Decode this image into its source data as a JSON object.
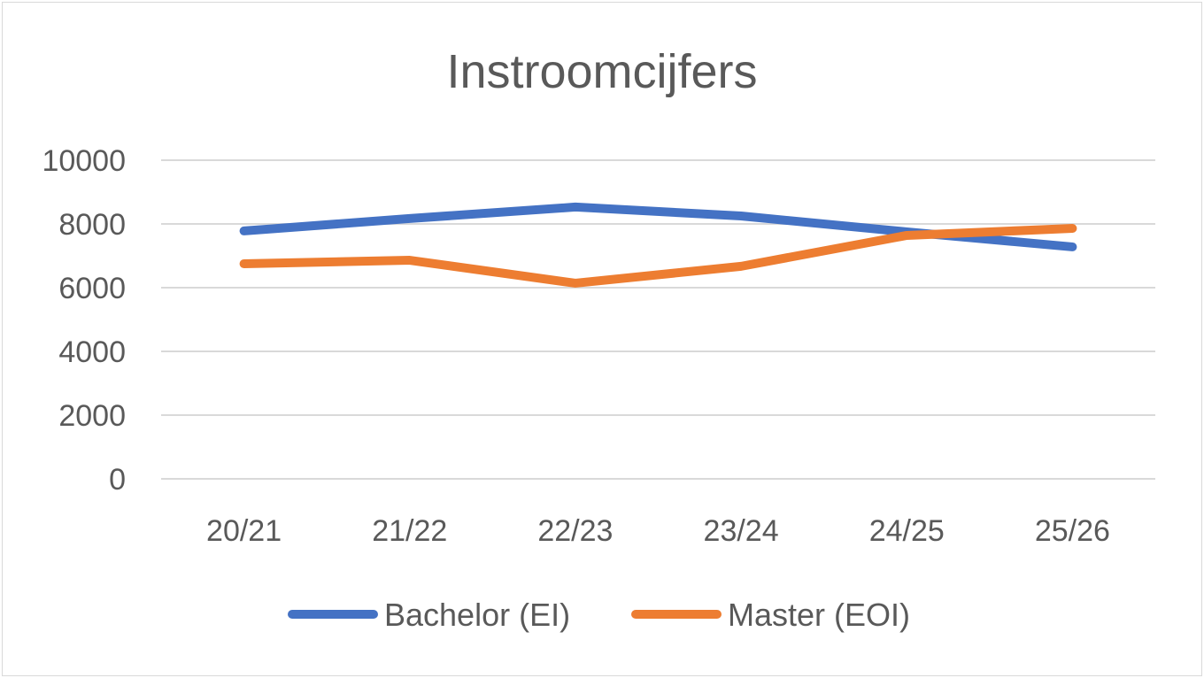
{
  "chart_data": {
    "type": "line",
    "title": "Instroomcijfers",
    "xlabel": "",
    "ylabel": "",
    "categories": [
      "20/21",
      "21/22",
      "22/23",
      "23/24",
      "24/25",
      "25/26"
    ],
    "series": [
      {
        "name": "Bachelor (EI)",
        "color": "#4472c4",
        "values": [
          7780,
          8170,
          8530,
          8250,
          7750,
          7280
        ]
      },
      {
        "name": "Master (EOI)",
        "color": "#ed7d31",
        "values": [
          6750,
          6860,
          6140,
          6670,
          7640,
          7860
        ]
      }
    ],
    "ylim": [
      0,
      10000
    ],
    "yticks": [
      "0",
      "2000",
      "4000",
      "6000",
      "8000",
      "10000"
    ],
    "grid": true,
    "legend_position": "bottom"
  }
}
